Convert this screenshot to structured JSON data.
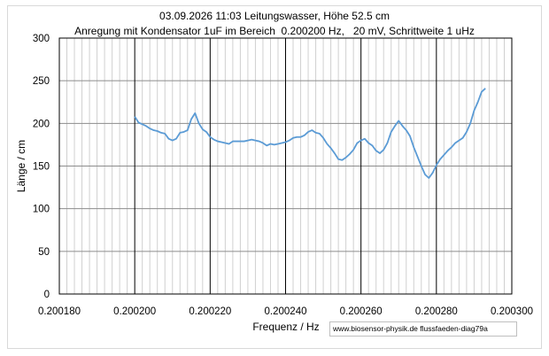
{
  "chart_data": {
    "type": "line",
    "title": "03.09.2026 11:03 Leitungswasser, Höhe 52.5 cm",
    "subtitle": "Anregung mit Kondensator 1uF im Bereich  0.200200 Hz,   20 mV, Schrittweite 1 uHz",
    "xlabel": "Frequenz / Hz",
    "ylabel": "Länge / cm",
    "xlim": [
      0.20018,
      0.2003
    ],
    "ylim": [
      0,
      300
    ],
    "x_ticks": [
      "0.200180",
      "0.200200",
      "0.200220",
      "0.200240",
      "0.200260",
      "0.200280",
      "0.200300"
    ],
    "y_ticks": [
      "0",
      "50",
      "100",
      "150",
      "200",
      "250",
      "300"
    ],
    "grid": true,
    "legend": "none",
    "series_color": "#5b9bd5",
    "series": [
      {
        "x": [
          0.2002,
          0.200201,
          0.200202,
          0.200203,
          0.200204,
          0.200205,
          0.200206,
          0.200207,
          0.200208,
          0.200209,
          0.20021,
          0.200211,
          0.200212,
          0.200213,
          0.200214,
          0.200215,
          0.200216,
          0.200217,
          0.200218,
          0.200219,
          0.20022,
          0.200221,
          0.200222,
          0.200223,
          0.200224,
          0.200225,
          0.200226,
          0.200227,
          0.200228,
          0.200229,
          0.20023,
          0.200231,
          0.200232,
          0.200233,
          0.200234,
          0.200235,
          0.200236,
          0.200237,
          0.200238,
          0.200239,
          0.20024,
          0.200241,
          0.200242,
          0.200243,
          0.200244,
          0.200245,
          0.200246,
          0.200247,
          0.200248,
          0.200249,
          0.20025,
          0.200251,
          0.200252,
          0.200253,
          0.200254,
          0.200255,
          0.200256,
          0.200257,
          0.200258,
          0.200259,
          0.20026,
          0.200261,
          0.200262,
          0.200263,
          0.200264,
          0.200265,
          0.200266,
          0.200267,
          0.200268,
          0.200269,
          0.20027,
          0.200271,
          0.200272,
          0.200273,
          0.200274,
          0.200275,
          0.200276,
          0.200277,
          0.200278,
          0.200279,
          0.20028,
          0.200281,
          0.200282,
          0.200283,
          0.200284,
          0.200285,
          0.200286,
          0.200287,
          0.200288,
          0.200289,
          0.20029,
          0.200291,
          0.200292,
          0.200293
        ],
        "y": [
          208,
          201,
          199,
          197,
          194,
          192,
          191,
          189,
          188,
          182,
          180,
          182,
          189,
          190,
          192,
          205,
          212,
          200,
          193,
          190,
          184,
          181,
          179,
          178,
          177,
          176,
          179,
          179,
          179,
          179,
          180,
          181,
          180,
          179,
          177,
          174,
          176,
          175,
          176,
          177,
          178,
          180,
          183,
          184,
          184,
          186,
          190,
          192,
          189,
          188,
          183,
          176,
          171,
          165,
          158,
          157,
          160,
          164,
          169,
          177,
          180,
          182,
          177,
          174,
          168,
          165,
          169,
          177,
          190,
          197,
          203,
          197,
          192,
          185,
          172,
          161,
          150,
          140,
          136,
          142,
          151,
          158,
          163,
          168,
          172,
          177,
          180,
          183,
          190,
          200,
          215,
          225,
          237,
          241
        ]
      }
    ]
  },
  "footer": {
    "source": "www.biosensor-physik.de  flussfaeden-diag79a"
  }
}
